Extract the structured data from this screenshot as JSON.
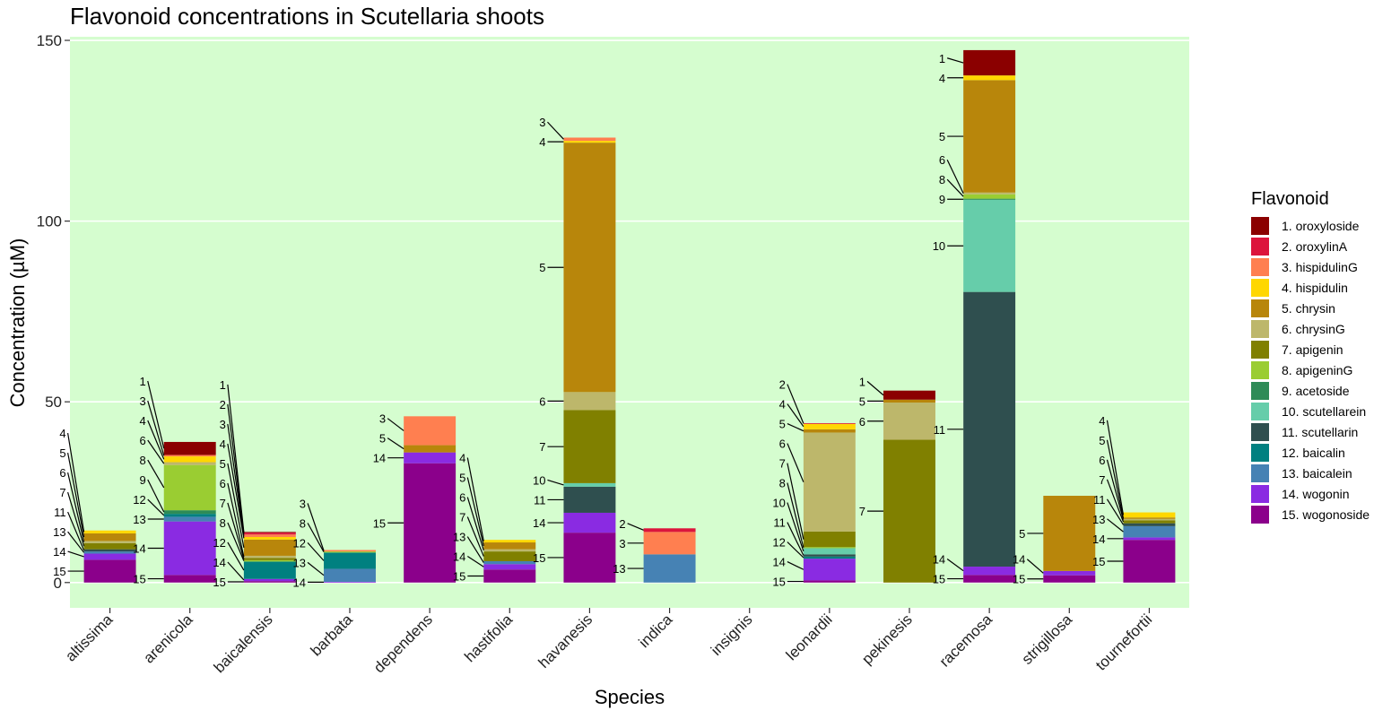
{
  "chart_data": {
    "type": "bar",
    "stacked": true,
    "title": "Flavonoid concentrations in Scutellaria shoots",
    "xlabel": "Species",
    "ylabel": "Concentration (µM)",
    "ylim": [
      -7,
      151
    ],
    "yticks": [
      0,
      50,
      100,
      150
    ],
    "background": "#d5fdcf",
    "grid_color": "#ffffff",
    "legend_title": "Flavonoid",
    "legend_position": "right",
    "flavonoids": [
      {
        "id": 1,
        "label": "1. oroxyloside",
        "color": "#8b0000"
      },
      {
        "id": 2,
        "label": "2. oroxylinA",
        "color": "#dc143c"
      },
      {
        "id": 3,
        "label": "3. hispidulinG",
        "color": "#ff7f50"
      },
      {
        "id": 4,
        "label": "4. hispidulin",
        "color": "#ffd700"
      },
      {
        "id": 5,
        "label": "5. chrysin",
        "color": "#b8860b"
      },
      {
        "id": 6,
        "label": "6. chrysinG",
        "color": "#bdb76b"
      },
      {
        "id": 7,
        "label": "7. apigenin",
        "color": "#808000"
      },
      {
        "id": 8,
        "label": "8. apigeninG",
        "color": "#9acd32"
      },
      {
        "id": 9,
        "label": "9. acetoside",
        "color": "#2e8b57"
      },
      {
        "id": 10,
        "label": "10. scutellarein",
        "color": "#66cdaa"
      },
      {
        "id": 11,
        "label": "11. scutellarin",
        "color": "#2f4f4f"
      },
      {
        "id": 12,
        "label": "12. baicalin",
        "color": "#008080"
      },
      {
        "id": 13,
        "label": "13. baicalein",
        "color": "#4682b4"
      },
      {
        "id": 14,
        "label": "14. wogonin",
        "color": "#8a2be2"
      },
      {
        "id": 15,
        "label": "15. wogonoside",
        "color": "#8b008b"
      }
    ],
    "species": [
      {
        "name": "altissima",
        "segments": [
          {
            "id": 15,
            "value": 6.3
          },
          {
            "id": 14,
            "value": 1.7
          },
          {
            "id": 13,
            "value": 0.6
          },
          {
            "id": 11,
            "value": 0.6
          },
          {
            "id": 7,
            "value": 1.7
          },
          {
            "id": 6,
            "value": 0.6
          },
          {
            "id": 5,
            "value": 2.1
          },
          {
            "id": 4,
            "value": 0.8
          }
        ]
      },
      {
        "name": "arenicola",
        "segments": [
          {
            "id": 15,
            "value": 2.1
          },
          {
            "id": 14,
            "value": 14.8
          },
          {
            "id": 13,
            "value": 1.3
          },
          {
            "id": 12,
            "value": 0.8
          },
          {
            "id": 9,
            "value": 1.0
          },
          {
            "id": 8,
            "value": 12.5
          },
          {
            "id": 6,
            "value": 0.8
          },
          {
            "id": 4,
            "value": 1.6
          },
          {
            "id": 3,
            "value": 0.4
          },
          {
            "id": 1,
            "value": 3.6
          }
        ]
      },
      {
        "name": "baicalensis",
        "segments": [
          {
            "id": 15,
            "value": 0.4
          },
          {
            "id": 14,
            "value": 0.6
          },
          {
            "id": 12,
            "value": 4.8
          },
          {
            "id": 8,
            "value": 0.4
          },
          {
            "id": 7,
            "value": 0.6
          },
          {
            "id": 6,
            "value": 0.6
          },
          {
            "id": 5,
            "value": 4.5
          },
          {
            "id": 4,
            "value": 0.7
          },
          {
            "id": 3,
            "value": 0.7
          },
          {
            "id": 2,
            "value": 0.5
          },
          {
            "id": 1,
            "value": 0.2
          }
        ]
      },
      {
        "name": "barbata",
        "segments": [
          {
            "id": 14,
            "value": 0.2
          },
          {
            "id": 13,
            "value": 3.6
          },
          {
            "id": 12,
            "value": 4.5
          },
          {
            "id": 8,
            "value": 0.3
          },
          {
            "id": 3,
            "value": 0.4
          }
        ]
      },
      {
        "name": "dependens",
        "segments": [
          {
            "id": 15,
            "value": 33.0
          },
          {
            "id": 14,
            "value": 3.0
          },
          {
            "id": 5,
            "value": 2.0
          },
          {
            "id": 3,
            "value": 8.0
          }
        ]
      },
      {
        "name": "hastifolia",
        "segments": [
          {
            "id": 15,
            "value": 3.6
          },
          {
            "id": 14,
            "value": 1.5
          },
          {
            "id": 13,
            "value": 0.8
          },
          {
            "id": 7,
            "value": 2.7
          },
          {
            "id": 6,
            "value": 0.6
          },
          {
            "id": 5,
            "value": 1.9
          },
          {
            "id": 4,
            "value": 0.7
          }
        ]
      },
      {
        "name": "havanesis",
        "segments": [
          {
            "id": 15,
            "value": 13.8
          },
          {
            "id": 14,
            "value": 5.5
          },
          {
            "id": 11,
            "value": 7.2
          },
          {
            "id": 10,
            "value": 1.0
          },
          {
            "id": 7,
            "value": 20.2
          },
          {
            "id": 6,
            "value": 5.0
          },
          {
            "id": 5,
            "value": 69.0
          },
          {
            "id": 4,
            "value": 0.5
          },
          {
            "id": 3,
            "value": 0.9
          }
        ]
      },
      {
        "name": "indica",
        "segments": [
          {
            "id": 13,
            "value": 7.8
          },
          {
            "id": 3,
            "value": 6.2
          },
          {
            "id": 2,
            "value": 1.0
          }
        ]
      },
      {
        "name": "insignis",
        "segments": []
      },
      {
        "name": "leonardii",
        "segments": [
          {
            "id": 15,
            "value": 0.6
          },
          {
            "id": 14,
            "value": 6.0
          },
          {
            "id": 12,
            "value": 0.6
          },
          {
            "id": 11,
            "value": 0.6
          },
          {
            "id": 10,
            "value": 1.7
          },
          {
            "id": 8,
            "value": 0.3
          },
          {
            "id": 7,
            "value": 4.3
          },
          {
            "id": 6,
            "value": 27.4
          },
          {
            "id": 5,
            "value": 0.9
          },
          {
            "id": 4,
            "value": 1.5
          },
          {
            "id": 2,
            "value": 0.2
          }
        ]
      },
      {
        "name": "pekinesis",
        "segments": [
          {
            "id": 7,
            "value": 39.5
          },
          {
            "id": 6,
            "value": 10.3
          },
          {
            "id": 5,
            "value": 0.8
          },
          {
            "id": 1,
            "value": 2.5
          }
        ]
      },
      {
        "name": "racemosa",
        "segments": [
          {
            "id": 15,
            "value": 2.1
          },
          {
            "id": 14,
            "value": 2.3
          },
          {
            "id": 11,
            "value": 76.0
          },
          {
            "id": 10,
            "value": 25.5
          },
          {
            "id": 9,
            "value": 0.3
          },
          {
            "id": 8,
            "value": 1.2
          },
          {
            "id": 6,
            "value": 0.5
          },
          {
            "id": 5,
            "value": 31.1
          },
          {
            "id": 4,
            "value": 1.3
          },
          {
            "id": 1,
            "value": 7.0
          }
        ]
      },
      {
        "name": "strigillosa",
        "segments": [
          {
            "id": 15,
            "value": 2.0
          },
          {
            "id": 14,
            "value": 1.2
          },
          {
            "id": 5,
            "value": 20.8
          }
        ]
      },
      {
        "name": "tournefortii",
        "segments": [
          {
            "id": 15,
            "value": 11.8
          },
          {
            "id": 14,
            "value": 0.7
          },
          {
            "id": 13,
            "value": 3.1
          },
          {
            "id": 11,
            "value": 0.8
          },
          {
            "id": 7,
            "value": 0.8
          },
          {
            "id": 6,
            "value": 0.4
          },
          {
            "id": 5,
            "value": 0.4
          },
          {
            "id": 4,
            "value": 1.4
          }
        ]
      }
    ]
  }
}
